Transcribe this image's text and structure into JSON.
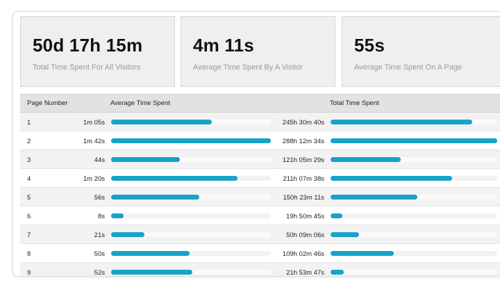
{
  "stats": [
    {
      "value": "50d 17h 15m",
      "label": "Total Time Spent For All Visitors"
    },
    {
      "value": "4m 11s",
      "label": "Average Time Spent By A Visitor"
    },
    {
      "value": "55s",
      "label": "Average Time Spent On A Page"
    }
  ],
  "table": {
    "headers": {
      "page_number": "Page Number",
      "avg_time": "Average Time Spent",
      "total_time": "Total Time Spent"
    },
    "rows": [
      {
        "page": "1",
        "avg": "1m 05s",
        "avg_pct": 0.63,
        "total": "245h 30m 40s",
        "total_pct": 0.85
      },
      {
        "page": "2",
        "avg": "1m 42s",
        "avg_pct": 1.0,
        "total": "288h 12m 34s",
        "total_pct": 1.0
      },
      {
        "page": "3",
        "avg": "44s",
        "avg_pct": 0.43,
        "total": "121h 05m 29s",
        "total_pct": 0.42
      },
      {
        "page": "4",
        "avg": "1m 20s",
        "avg_pct": 0.79,
        "total": "211h 07m 38s",
        "total_pct": 0.73
      },
      {
        "page": "5",
        "avg": "56s",
        "avg_pct": 0.55,
        "total": "150h 23m 11s",
        "total_pct": 0.52
      },
      {
        "page": "6",
        "avg": "8s",
        "avg_pct": 0.08,
        "total": "19h 50m 45s",
        "total_pct": 0.07
      },
      {
        "page": "7",
        "avg": "21s",
        "avg_pct": 0.21,
        "total": "50h 09m 06s",
        "total_pct": 0.17
      },
      {
        "page": "8",
        "avg": "50s",
        "avg_pct": 0.49,
        "total": "109h 02m 46s",
        "total_pct": 0.38
      },
      {
        "page": "9",
        "avg": "52s",
        "avg_pct": 0.51,
        "total": "21h 53m 47s",
        "total_pct": 0.08
      }
    ]
  },
  "colors": {
    "bar_fill": "#17a2c8"
  }
}
